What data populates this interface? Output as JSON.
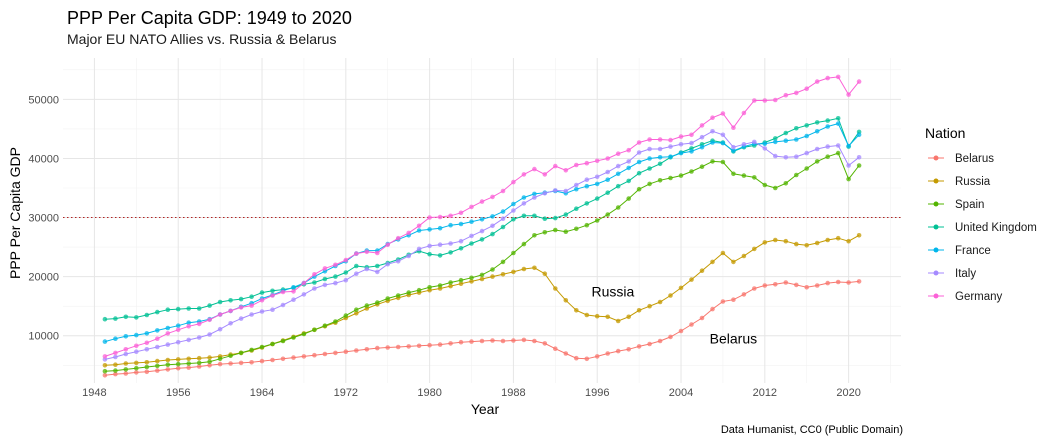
{
  "chart_data": {
    "type": "line",
    "title": "PPP Per Capita GDP: 1949 to 2020",
    "subtitle": "Major EU NATO Allies vs. Russia & Belarus",
    "xlabel": "Year",
    "ylabel": "PPP Per Capita GDP",
    "caption": "Data Humanist, CC0 (Public Domain)",
    "xlim": [
      1945,
      2025
    ],
    "ylim": [
      2000,
      57000
    ],
    "x_ticks": [
      1948,
      1956,
      1964,
      1972,
      1980,
      1988,
      1996,
      2004,
      2012,
      2020
    ],
    "y_ticks": [
      10000,
      20000,
      30000,
      40000,
      50000
    ],
    "x_tick_labels": [
      "1948",
      "1956",
      "1964",
      "1972",
      "1980",
      "1988",
      "1996",
      "2004",
      "2012",
      "2020"
    ],
    "y_tick_labels": [
      "10000",
      "20000",
      "30000",
      "40000",
      "50000"
    ],
    "grid": true,
    "legend_title": "Nation",
    "legend_position": "right",
    "reference_line": {
      "y": 30000,
      "style": "dotted",
      "color": "#b22222"
    },
    "annotations": [
      {
        "text": "Russia",
        "x": 1997.5,
        "y": 17500
      },
      {
        "text": "Belarus",
        "x": 2009,
        "y": 9500
      }
    ],
    "x": [
      1949,
      1950,
      1951,
      1952,
      1953,
      1954,
      1955,
      1956,
      1957,
      1958,
      1959,
      1960,
      1961,
      1962,
      1963,
      1964,
      1965,
      1966,
      1967,
      1968,
      1969,
      1970,
      1971,
      1972,
      1973,
      1974,
      1975,
      1976,
      1977,
      1978,
      1979,
      1980,
      1981,
      1982,
      1983,
      1984,
      1985,
      1986,
      1987,
      1988,
      1989,
      1990,
      1991,
      1992,
      1993,
      1994,
      1995,
      1996,
      1997,
      1998,
      1999,
      2000,
      2001,
      2002,
      2003,
      2004,
      2005,
      2006,
      2007,
      2008,
      2009,
      2010,
      2011,
      2012,
      2013,
      2014,
      2015,
      2016,
      2017,
      2018,
      2019,
      2020,
      2021
    ],
    "series": [
      {
        "name": "Belarus",
        "color": "#F8766D",
        "values": [
          3300,
          3500,
          3600,
          3800,
          3900,
          4100,
          4300,
          4500,
          4600,
          4800,
          5000,
          5200,
          5300,
          5400,
          5500,
          5700,
          5900,
          6100,
          6300,
          6500,
          6700,
          6900,
          7100,
          7300,
          7500,
          7700,
          7900,
          8000,
          8100,
          8200,
          8300,
          8400,
          8500,
          8700,
          8900,
          9000,
          9100,
          9200,
          9100,
          9200,
          9300,
          9100,
          8700,
          7800,
          7000,
          6200,
          6100,
          6500,
          7000,
          7400,
          7700,
          8200,
          8600,
          9100,
          9800,
          10800,
          11900,
          13000,
          14500,
          15800,
          16100,
          17000,
          18000,
          18500,
          18700,
          19000,
          18600,
          18200,
          18500,
          18900,
          19100,
          19000,
          19200
        ]
      },
      {
        "name": "Russia",
        "color": "#C49A00",
        "values": [
          5000,
          5100,
          5300,
          5400,
          5500,
          5700,
          5900,
          6000,
          6100,
          6200,
          6300,
          6500,
          6800,
          7100,
          7500,
          8000,
          8600,
          9200,
          9800,
          10400,
          11000,
          11600,
          12200,
          13000,
          13800,
          14600,
          15300,
          15900,
          16400,
          16900,
          17300,
          17700,
          18000,
          18400,
          18800,
          19200,
          19600,
          20000,
          20400,
          20800,
          21300,
          21500,
          20500,
          18000,
          16000,
          14300,
          13500,
          13300,
          13200,
          12500,
          13200,
          14300,
          15000,
          15700,
          16800,
          18100,
          19500,
          21000,
          22500,
          24000,
          22500,
          23500,
          24700,
          25800,
          26200,
          26000,
          25500,
          25300,
          25700,
          26200,
          26500,
          26000,
          27000
        ]
      },
      {
        "name": "Spain",
        "color": "#53B400",
        "values": [
          4000,
          4100,
          4300,
          4500,
          4700,
          4900,
          5100,
          5200,
          5300,
          5400,
          5600,
          6100,
          6600,
          7100,
          7600,
          8100,
          8600,
          9100,
          9700,
          10300,
          11000,
          11700,
          12400,
          13400,
          14400,
          15100,
          15600,
          16300,
          16800,
          17300,
          17700,
          18200,
          18500,
          19000,
          19400,
          19800,
          20300,
          21200,
          22500,
          24000,
          25500,
          27000,
          27500,
          27900,
          27600,
          28100,
          28700,
          29500,
          30500,
          31700,
          33200,
          34800,
          35700,
          36300,
          36700,
          37100,
          37800,
          38600,
          39500,
          39400,
          37400,
          37100,
          36800,
          35500,
          35000,
          35800,
          37200,
          38300,
          39500,
          40300,
          40900,
          36500,
          38800
        ]
      },
      {
        "name": "United Kingdom",
        "color": "#00C094",
        "values": [
          12800,
          12900,
          13200,
          13100,
          13500,
          14000,
          14400,
          14500,
          14600,
          14600,
          15100,
          15700,
          16000,
          16200,
          16600,
          17300,
          17600,
          17800,
          18100,
          18700,
          19000,
          19600,
          20000,
          20700,
          21800,
          21600,
          21800,
          22300,
          22900,
          23700,
          24300,
          23800,
          23600,
          24100,
          24800,
          25600,
          26300,
          27200,
          28400,
          29700,
          30300,
          30300,
          29800,
          29900,
          30500,
          31500,
          32400,
          33200,
          34200,
          35300,
          36200,
          37500,
          38300,
          39100,
          40200,
          41000,
          41700,
          42400,
          43000,
          42700,
          41200,
          41900,
          42200,
          42700,
          43400,
          44300,
          45100,
          45600,
          46100,
          46400,
          46800,
          42000,
          44500
        ]
      },
      {
        "name": "France",
        "color": "#00B6EB",
        "values": [
          9000,
          9500,
          9900,
          10100,
          10400,
          10900,
          11300,
          11700,
          12200,
          12400,
          12800,
          13600,
          14200,
          14900,
          15500,
          16300,
          16900,
          17600,
          18200,
          18900,
          20000,
          20900,
          21800,
          22600,
          23900,
          24400,
          24400,
          25500,
          26300,
          27000,
          27800,
          28000,
          28200,
          28700,
          28900,
          29300,
          29700,
          30200,
          31000,
          32300,
          33400,
          34000,
          34200,
          34500,
          34100,
          34800,
          35300,
          35700,
          36400,
          37400,
          38400,
          39400,
          40000,
          40200,
          40300,
          40900,
          41200,
          41900,
          42700,
          42600,
          41300,
          42000,
          42500,
          42500,
          42800,
          43000,
          43200,
          43800,
          44600,
          45400,
          45900,
          42100,
          44000
        ]
      },
      {
        "name": "Italy",
        "color": "#A58AFF",
        "values": [
          6000,
          6400,
          6900,
          7300,
          7700,
          8100,
          8500,
          8900,
          9300,
          9700,
          10200,
          11100,
          12100,
          12900,
          13600,
          14100,
          14400,
          15200,
          16100,
          17000,
          18000,
          18600,
          18900,
          19400,
          20500,
          21300,
          20800,
          22100,
          22600,
          23500,
          24700,
          25200,
          25400,
          25600,
          26000,
          26900,
          27700,
          28600,
          29800,
          31200,
          32400,
          33400,
          34100,
          34600,
          34500,
          35500,
          36400,
          36900,
          37700,
          38700,
          39500,
          41000,
          41600,
          41600,
          42000,
          42400,
          42600,
          43600,
          44600,
          44000,
          41900,
          42400,
          42800,
          41700,
          40400,
          40200,
          40300,
          40900,
          41600,
          42000,
          42200,
          38800,
          40200
        ]
      },
      {
        "name": "Germany",
        "color": "#FB61D7",
        "values": [
          6500,
          7100,
          7700,
          8300,
          8800,
          9500,
          10400,
          11000,
          11600,
          12000,
          12700,
          13600,
          14200,
          14800,
          15100,
          16000,
          16800,
          17400,
          17500,
          18900,
          20400,
          21400,
          22000,
          22800,
          23900,
          24200,
          24000,
          25400,
          26500,
          27400,
          28600,
          30000,
          30100,
          30300,
          30800,
          31800,
          32700,
          33500,
          34500,
          36000,
          37300,
          38200,
          37300,
          38700,
          38000,
          38900,
          39200,
          39600,
          40000,
          40800,
          41400,
          42700,
          43200,
          43200,
          43100,
          43700,
          44000,
          45600,
          46900,
          47600,
          45200,
          47700,
          49800,
          49800,
          49900,
          50700,
          51100,
          51800,
          53000,
          53600,
          53800,
          50800,
          53000
        ]
      }
    ]
  }
}
